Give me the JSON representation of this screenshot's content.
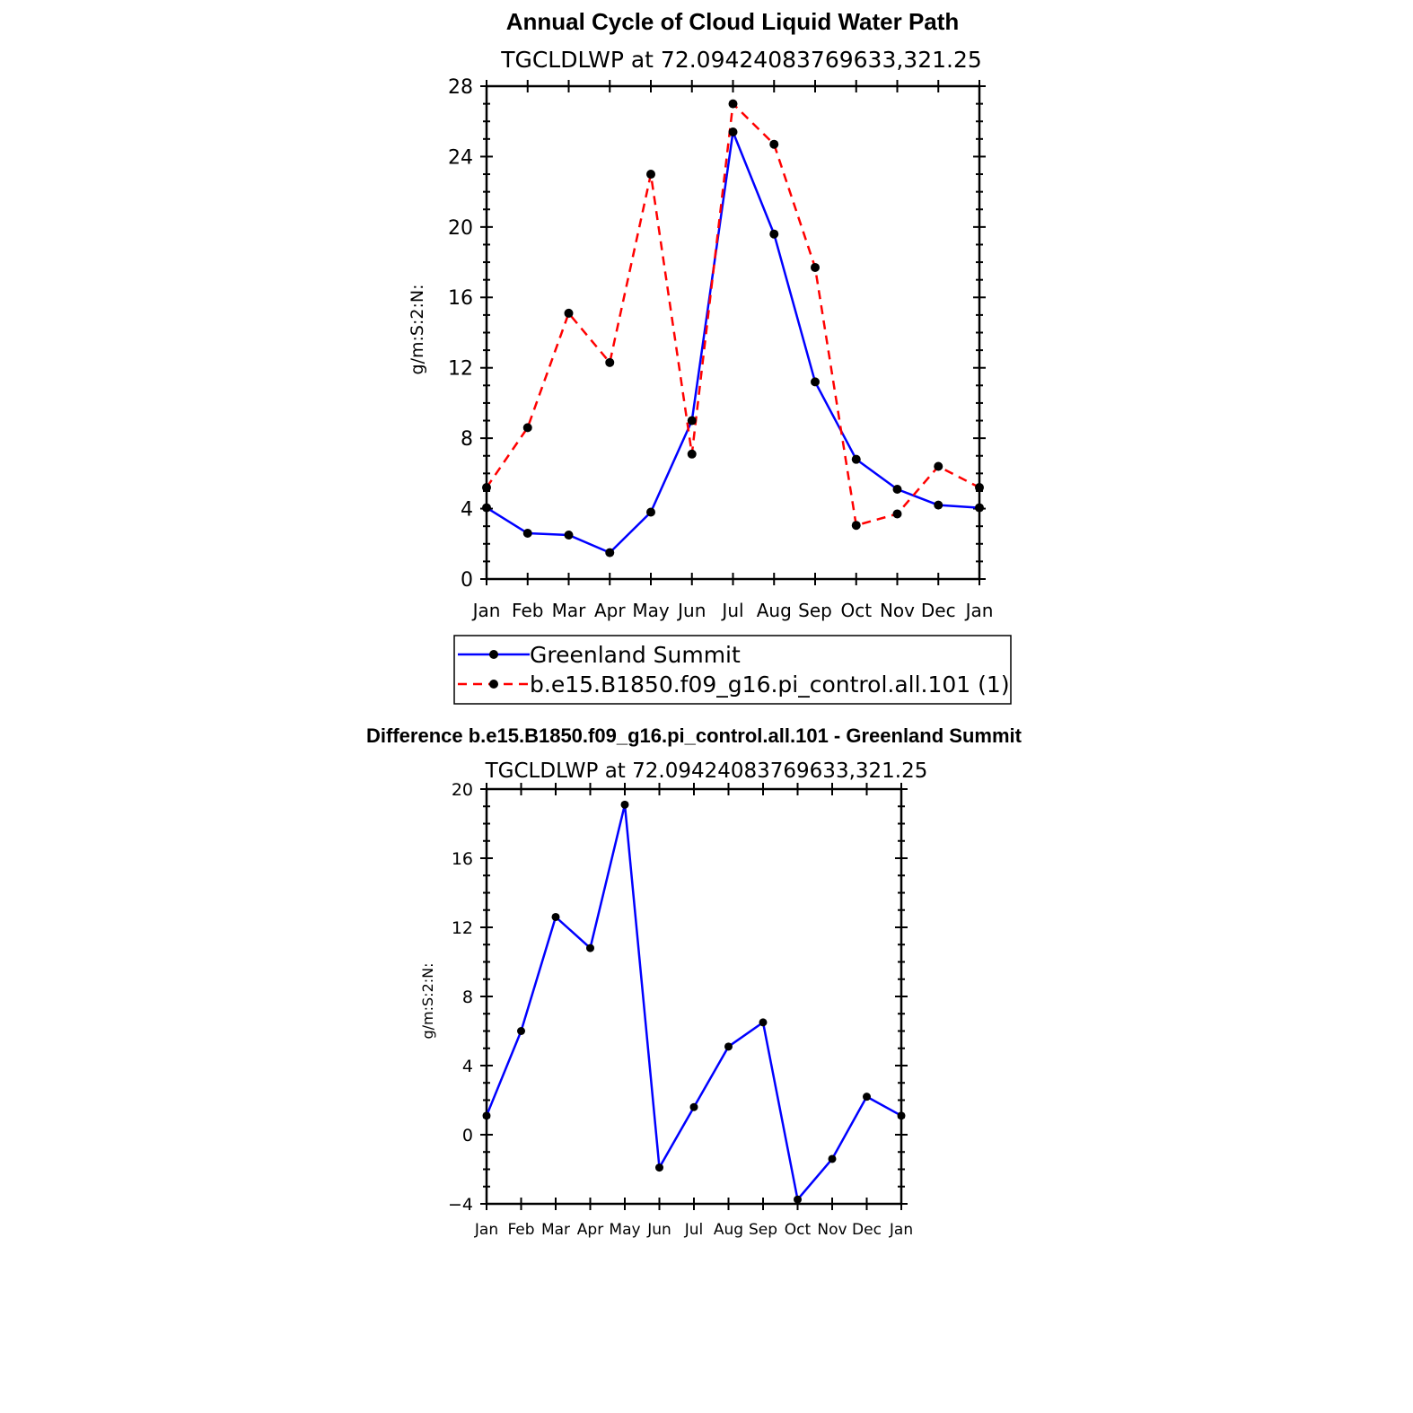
{
  "chart_data": [
    {
      "type": "line",
      "title": "Annual Cycle of Cloud Liquid Water Path",
      "subtitle": "TGCLDLWP at 72.09424083769633,321.25",
      "ylabel": "g/m:S:2:N:",
      "xlabel": "",
      "ylim": [
        0,
        28
      ],
      "yticks": [
        0,
        4,
        8,
        12,
        16,
        20,
        24,
        28
      ],
      "categories": [
        "Jan",
        "Feb",
        "Mar",
        "Apr",
        "May",
        "Jun",
        "Jul",
        "Aug",
        "Sep",
        "Oct",
        "Nov",
        "Dec",
        "Jan"
      ],
      "legend_position": "bottom",
      "grid": false,
      "series": [
        {
          "name": "Greenland Summit",
          "color": "#0000ff",
          "dash": "solid",
          "values": [
            4.05,
            2.6,
            2.5,
            1.5,
            3.8,
            9.0,
            25.4,
            19.6,
            11.2,
            6.8,
            5.1,
            4.2,
            4.05
          ]
        },
        {
          "name": "b.e15.B1850.f09_g16.pi_control.all.101 (1)",
          "color": "#ff0000",
          "dash": "dashed",
          "values": [
            5.2,
            8.6,
            15.1,
            12.3,
            23.0,
            7.1,
            27.0,
            24.7,
            17.7,
            3.05,
            3.7,
            6.4,
            5.2
          ]
        }
      ]
    },
    {
      "type": "line",
      "title": "Difference b.e15.B1850.f09_g16.pi_control.all.101 - Greenland Summit",
      "subtitle": "TGCLDLWP at 72.09424083769633,321.25",
      "ylabel": "g/m:S:2:N:",
      "xlabel": "",
      "ylim": [
        -4,
        20
      ],
      "yticks": [
        -4,
        0,
        4,
        8,
        12,
        16,
        20
      ],
      "categories": [
        "Jan",
        "Feb",
        "Mar",
        "Apr",
        "May",
        "Jun",
        "Jul",
        "Aug",
        "Sep",
        "Oct",
        "Nov",
        "Dec",
        "Jan"
      ],
      "grid": false,
      "series": [
        {
          "color": "#0000ff",
          "dash": "solid",
          "values": [
            1.1,
            6.0,
            12.6,
            10.8,
            19.1,
            -1.9,
            1.6,
            5.1,
            6.5,
            -3.75,
            -1.4,
            2.2,
            1.1
          ]
        }
      ]
    }
  ]
}
